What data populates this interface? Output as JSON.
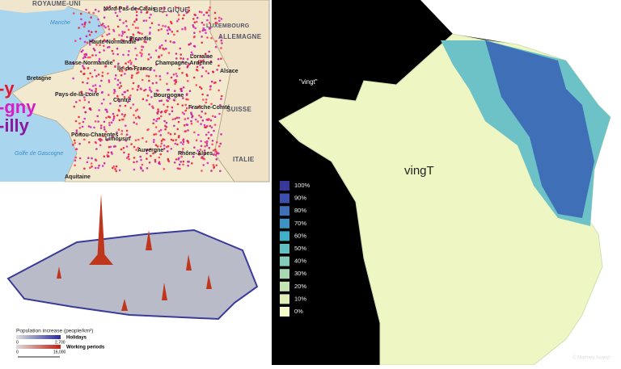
{
  "place_name_map": {
    "countries": [
      "ROYAUME-UNI",
      "BELGIQUE",
      "LUXEMBOURG",
      "ALLEMAGNE",
      "SUISSE",
      "ITALIE"
    ],
    "regions": [
      "Nord-Pas-de-Calais",
      "Haute-Normandie",
      "Picardie",
      "Basse-Normandie",
      "Lorraine",
      "Île-de-France",
      "Champagne-Ardenne",
      "Bretagne",
      "Alsace",
      "Pays-de-la-Loire",
      "Centre",
      "Bourgogne",
      "Franche-Comté",
      "Poitou-Charentes",
      "Limousin",
      "Auvergne",
      "Rhône-Alpes",
      "Aquitaine"
    ],
    "seas": [
      "Manche",
      "Golfe de Gascogne"
    ],
    "suffixes": [
      "-y",
      "-gny",
      "-illy"
    ]
  },
  "population_map": {
    "legend_title": "Population increase (people/km²)",
    "holidays": {
      "label": "Holidays",
      "min": "0",
      "max": "2,700"
    },
    "working": {
      "label": "Working periods",
      "min": "0",
      "max": "16,000"
    }
  },
  "vingt_map": {
    "word": "\"vingt\"",
    "title": "vingT",
    "legend": [
      {
        "label": "100%",
        "color": "#38389a"
      },
      {
        "label": "90%",
        "color": "#3f4fae"
      },
      {
        "label": "80%",
        "color": "#3f70b7"
      },
      {
        "label": "70%",
        "color": "#3e92c1"
      },
      {
        "label": "60%",
        "color": "#40afc8"
      },
      {
        "label": "50%",
        "color": "#62c0c2"
      },
      {
        "label": "40%",
        "color": "#85cdb9"
      },
      {
        "label": "30%",
        "color": "#a7d9b4"
      },
      {
        "label": "20%",
        "color": "#c5e6b4"
      },
      {
        "label": "10%",
        "color": "#ddf0ba"
      },
      {
        "label": "0%",
        "color": "#f4f9cc"
      }
    ],
    "credit": "© Mathieu Avanzi"
  }
}
